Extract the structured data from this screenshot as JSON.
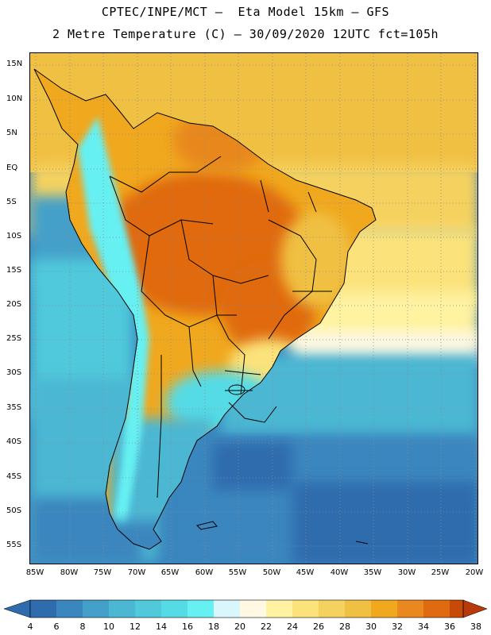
{
  "header": {
    "line1": "CPTEC/INPE/MCT –  Eta Model 15km – GFS",
    "line2": "2 Metre Temperature (C) – 30/09/2020 12UTC fct=105h"
  },
  "axes": {
    "lat_labels": [
      "15N",
      "10N",
      "5N",
      "EQ",
      "5S",
      "10S",
      "15S",
      "20S",
      "25S",
      "30S",
      "35S",
      "40S",
      "45S",
      "50S",
      "55S"
    ],
    "lon_labels": [
      "85W",
      "80W",
      "75W",
      "70W",
      "65W",
      "60W",
      "55W",
      "50W",
      "45W",
      "40W",
      "35W",
      "30W",
      "25W",
      "20W"
    ]
  },
  "colorbar": {
    "labels": [
      "4",
      "6",
      "8",
      "10",
      "12",
      "14",
      "16",
      "18",
      "20",
      "22",
      "24",
      "26",
      "28",
      "30",
      "32",
      "34",
      "36",
      "38"
    ],
    "colors": [
      "#2f6cae",
      "#3a86be",
      "#45a0c9",
      "#4bb7d3",
      "#50c9db",
      "#55dbe6",
      "#66f0f2",
      "#d8f6fb",
      "#fff8e2",
      "#fff2a0",
      "#fbe27a",
      "#f5d25f",
      "#f0c043",
      "#f0a81e",
      "#e8881e",
      "#e06a10",
      "#c84a08",
      "#b83a08"
    ]
  },
  "map_colors": {
    "ocean_cold": "#2f6cae",
    "ocean_cool": "#3a86be",
    "ocean_mid": "#4bb7d3",
    "ocean_warm": "#50c9db",
    "ocean_tropic": "#f5d25f",
    "ocean_tropic_n": "#f0c043",
    "land_hot": "#e06a10",
    "land_warm": "#f0a81e",
    "land_mild": "#fbe27a",
    "andes_cold": "#66f0f2",
    "patagonia": "#4bb7d3"
  }
}
